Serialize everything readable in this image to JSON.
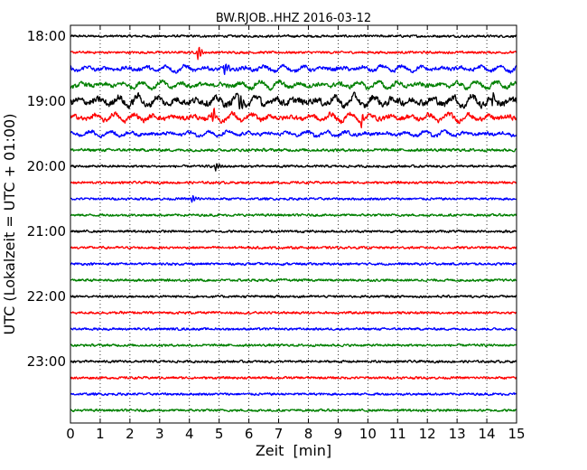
{
  "chart_data": {
    "type": "line",
    "title": "BW.RJOB..HHZ 2016-03-12",
    "xlabel": "Zeit  [min]",
    "ylabel": "UTC (Lokalzeit = UTC + 01:00)",
    "xlim": [
      0,
      15
    ],
    "x_ticks": [
      "0",
      "1",
      "2",
      "3",
      "4",
      "5",
      "6",
      "7",
      "8",
      "9",
      "10",
      "11",
      "12",
      "13",
      "14",
      "15"
    ],
    "y_tick_labels": [
      "18:00",
      "19:00",
      "20:00",
      "21:00",
      "22:00",
      "23:00"
    ],
    "row_interval_minutes": 15,
    "first_row": "18:00",
    "row_count": 24,
    "grid": "vertical dotted",
    "series_colors": [
      "#000000",
      "#ff0000",
      "#0000ff",
      "#008000"
    ],
    "row_amplitudes": [
      2.5,
      2.5,
      4.0,
      4.5,
      7.0,
      5.0,
      3.5,
      3.0,
      2.5,
      2.5,
      2.5,
      2.5,
      2.5,
      2.5,
      2.5,
      2.5,
      2.5,
      2.5,
      2.5,
      2.5,
      2.5,
      2.5,
      2.5,
      2.5
    ],
    "events": [
      {
        "row": 1,
        "minute": 4.3,
        "amplitude": 6
      },
      {
        "row": 2,
        "minute": 5.2,
        "amplitude": 6
      },
      {
        "row": 4,
        "minute": 5.7,
        "amplitude": 8
      },
      {
        "row": 4,
        "minute": 14.2,
        "amplitude": 6
      },
      {
        "row": 5,
        "minute": 4.8,
        "amplitude": 6
      },
      {
        "row": 5,
        "minute": 9.8,
        "amplitude": 5
      },
      {
        "row": 8,
        "minute": 4.9,
        "amplitude": 4
      },
      {
        "row": 10,
        "minute": 4.1,
        "amplitude": 4
      }
    ]
  }
}
